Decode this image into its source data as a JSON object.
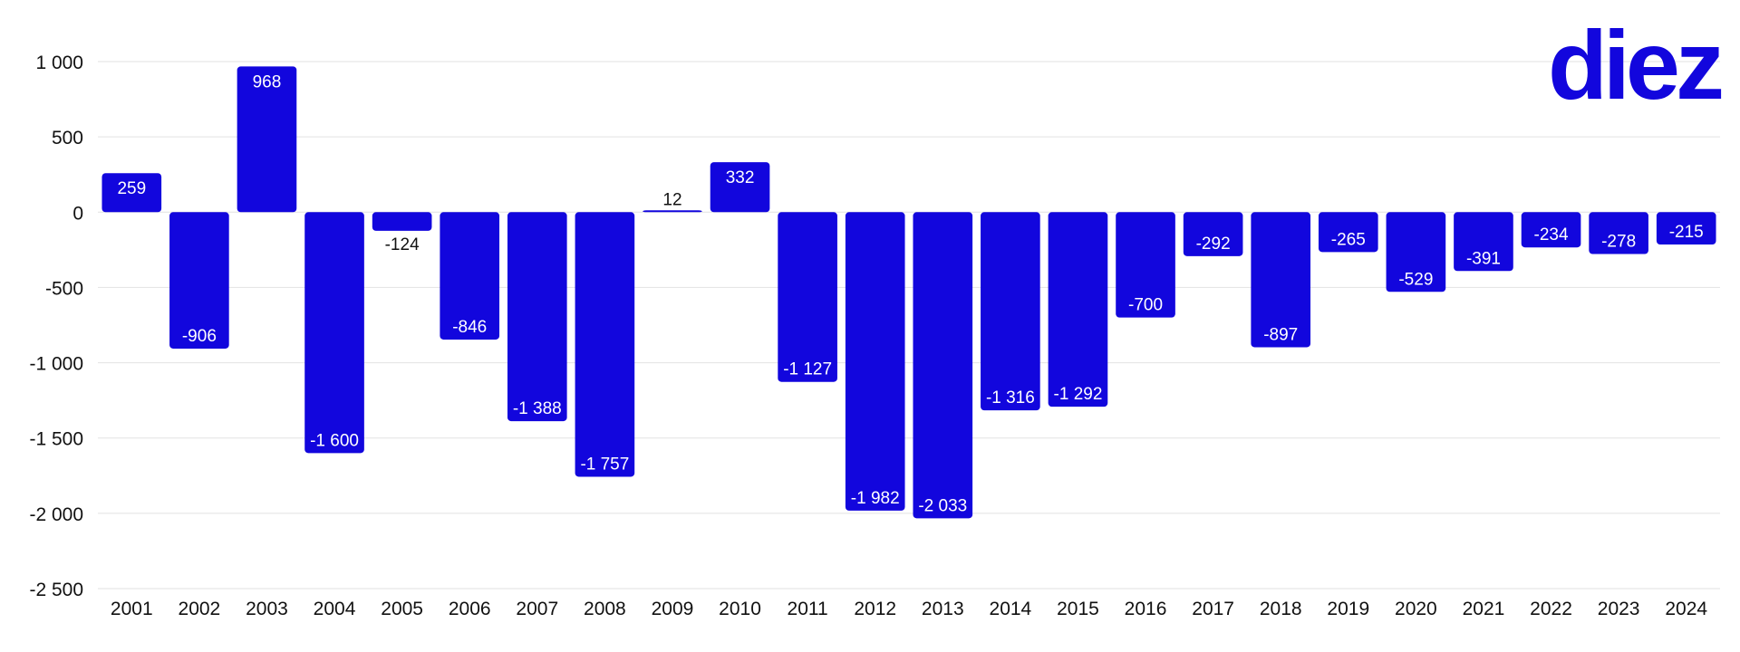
{
  "brand": {
    "logo_text": "diez",
    "color": "#1206dd"
  },
  "chart_data": {
    "type": "bar",
    "title": "",
    "xlabel": "",
    "ylabel": "",
    "categories": [
      "2001",
      "2002",
      "2003",
      "2004",
      "2005",
      "2006",
      "2007",
      "2008",
      "2009",
      "2010",
      "2011",
      "2012",
      "2013",
      "2014",
      "2015",
      "2016",
      "2017",
      "2018",
      "2019",
      "2020",
      "2021",
      "2022",
      "2023",
      "2024"
    ],
    "values": [
      259,
      -906,
      968,
      -1600,
      -124,
      -846,
      -1388,
      -1757,
      12,
      332,
      -1127,
      -1982,
      -2033,
      -1316,
      -1292,
      -700,
      -292,
      -897,
      -265,
      -529,
      -391,
      -234,
      -278,
      -215
    ],
    "value_labels": [
      "259",
      "-906",
      "968",
      "-1 600",
      "-124",
      "-846",
      "-1 388",
      "-1 757",
      "12",
      "332",
      "-1 127",
      "-1 982",
      "-2 033",
      "-1 316",
      "-1 292",
      "-700",
      "-292",
      "-897",
      "-265",
      "-529",
      "-391",
      "-234",
      "-278",
      "-215"
    ],
    "ylim": [
      -2500,
      1000
    ],
    "yticks": [
      1000,
      500,
      0,
      -500,
      -1000,
      -1500,
      -2000,
      -2500
    ],
    "ytick_labels": [
      "1 000",
      "500",
      "0",
      "-500",
      "-1 000",
      "-1 500",
      "-2 000",
      "-2 500"
    ],
    "grid": true,
    "legend": "none",
    "bar_color": "#1206dd",
    "grid_color": "#e2e2e2",
    "label_color_inside": "#ffffff",
    "label_color_outside": "#111111"
  }
}
